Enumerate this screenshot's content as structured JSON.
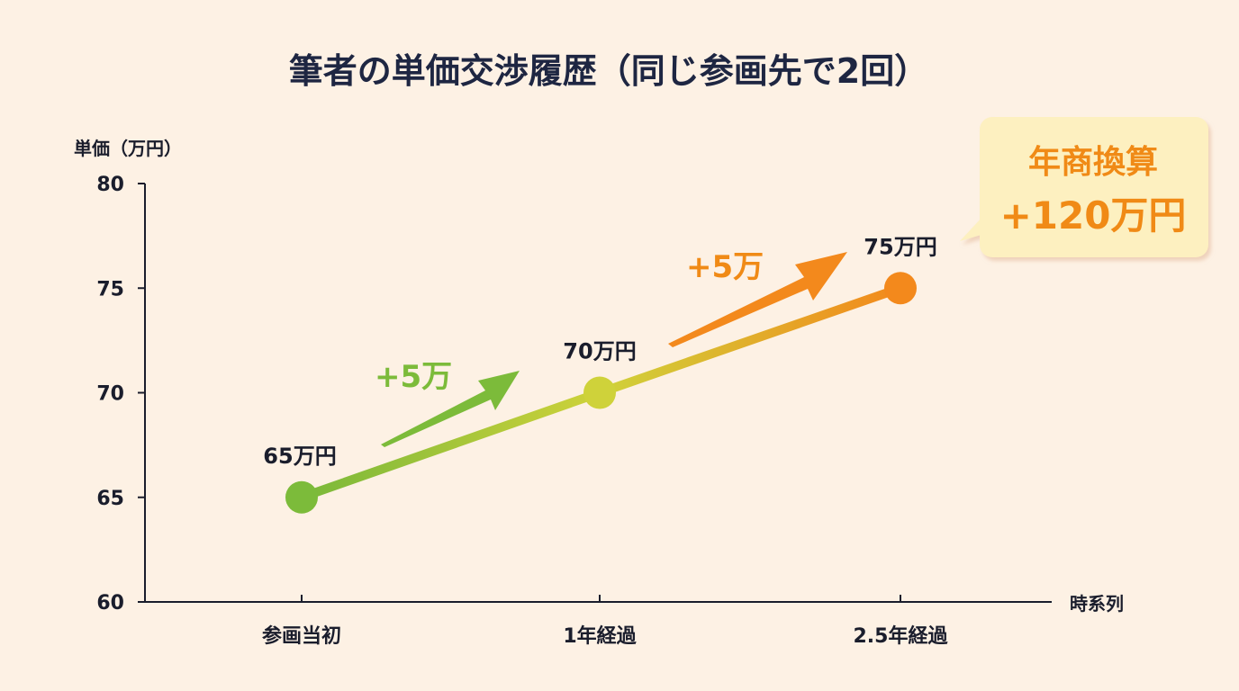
{
  "chart_data": {
    "type": "line",
    "title": "筆者の単価交渉履歴（同じ参画先で2回）",
    "ylabel": "単価（万円）",
    "xlabel": "時系列",
    "ylim": [
      60,
      80
    ],
    "y_ticks": [
      80,
      75,
      70,
      65,
      60
    ],
    "categories": [
      "参画当初",
      "1年経過",
      "2.5年経過"
    ],
    "values": [
      65,
      70,
      75
    ],
    "point_labels": [
      "65万円",
      "70万円",
      "75万円"
    ],
    "grid": false,
    "annotations": {
      "deltas": [
        "+5万",
        "+5万"
      ],
      "callout": {
        "line1": "年商換算",
        "line2": "+120万円"
      }
    },
    "colors": {
      "start": "#7cbb3a",
      "mid": "#cfd23a",
      "end": "#f3891c",
      "delta1": "#7cbb3a",
      "delta2": "#f08a16",
      "callout_bg": "#fdf0c0",
      "callout_text": "#f08a16"
    }
  }
}
